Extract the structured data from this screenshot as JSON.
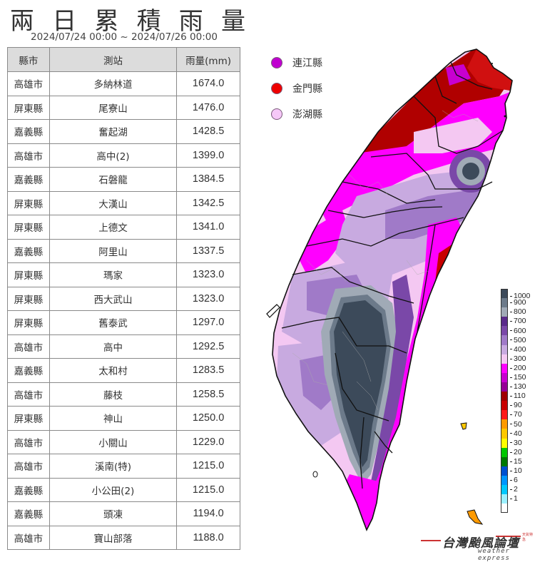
{
  "title": {
    "chars": [
      "兩",
      "日",
      "累",
      "積",
      "雨",
      "量"
    ],
    "text": "兩日累積雨量",
    "period": "2024/07/24 00:00 ~ 2024/07/26 00:00"
  },
  "table": {
    "headers": [
      "縣市",
      "測站",
      "雨量(mm)"
    ],
    "rows": [
      {
        "county": "高雄市",
        "station": "多納林道",
        "rain": "1674.0"
      },
      {
        "county": "屏東縣",
        "station": "尾寮山",
        "rain": "1476.0"
      },
      {
        "county": "嘉義縣",
        "station": "奮起湖",
        "rain": "1428.5"
      },
      {
        "county": "高雄市",
        "station": "高中(2)",
        "rain": "1399.0"
      },
      {
        "county": "嘉義縣",
        "station": "石磐龍",
        "rain": "1384.5"
      },
      {
        "county": "屏東縣",
        "station": "大漢山",
        "rain": "1342.5"
      },
      {
        "county": "屏東縣",
        "station": "上德文",
        "rain": "1341.0"
      },
      {
        "county": "嘉義縣",
        "station": "阿里山",
        "rain": "1337.5"
      },
      {
        "county": "屏東縣",
        "station": "瑪家",
        "rain": "1323.0"
      },
      {
        "county": "屏東縣",
        "station": "西大武山",
        "rain": "1323.0"
      },
      {
        "county": "屏東縣",
        "station": "舊泰武",
        "rain": "1297.0"
      },
      {
        "county": "高雄市",
        "station": "高中",
        "rain": "1292.5"
      },
      {
        "county": "嘉義縣",
        "station": "太和村",
        "rain": "1283.5"
      },
      {
        "county": "高雄市",
        "station": "藤枝",
        "rain": "1258.5"
      },
      {
        "county": "屏東縣",
        "station": "神山",
        "rain": "1250.0"
      },
      {
        "county": "高雄市",
        "station": "小關山",
        "rain": "1229.0"
      },
      {
        "county": "高雄市",
        "station": "溪南(特)",
        "rain": "1215.0"
      },
      {
        "county": "嘉義縣",
        "station": "小公田(2)",
        "rain": "1215.0"
      },
      {
        "county": "嘉義縣",
        "station": "頭凍",
        "rain": "1194.0"
      },
      {
        "county": "高雄市",
        "station": "寶山部落",
        "rain": "1188.0"
      }
    ]
  },
  "outlying_islands": [
    {
      "name": "連江縣",
      "color": "#c000d0"
    },
    {
      "name": "金門縣",
      "color": "#ee0000"
    },
    {
      "name": "澎湖縣",
      "color": "#f6c8f8"
    }
  ],
  "colorbar": {
    "unit": "mm",
    "levels": [
      {
        "label": "1000",
        "color": "#3c4a5a"
      },
      {
        "label": "900",
        "color": "#6c7a8a"
      },
      {
        "label": "800",
        "color": "#a0aab6"
      },
      {
        "label": "700",
        "color": "#5a2a8a"
      },
      {
        "label": "600",
        "color": "#7a48a8"
      },
      {
        "label": "500",
        "color": "#a07ac8"
      },
      {
        "label": "400",
        "color": "#c8aae0"
      },
      {
        "label": "300",
        "color": "#f4c8f2"
      },
      {
        "label": "200",
        "color": "#ff00ff"
      },
      {
        "label": "150",
        "color": "#c800d0"
      },
      {
        "label": "130",
        "color": "#960096"
      },
      {
        "label": "110",
        "color": "#a00000"
      },
      {
        "label": "90",
        "color": "#c80000"
      },
      {
        "label": "70",
        "color": "#ff1a1a"
      },
      {
        "label": "50",
        "color": "#ff9a00"
      },
      {
        "label": "40",
        "color": "#ffc800"
      },
      {
        "label": "30",
        "color": "#ffff00"
      },
      {
        "label": "20",
        "color": "#00c800"
      },
      {
        "label": "15",
        "color": "#007800"
      },
      {
        "label": "10",
        "color": "#0050d0"
      },
      {
        "label": "6",
        "color": "#0096ff"
      },
      {
        "label": "2",
        "color": "#00c8ff"
      },
      {
        "label": "1",
        "color": "#9cf0ff"
      },
      {
        "label": "",
        "color": "#ffffff"
      }
    ]
  },
  "logo": {
    "main": "台灣颱風論壇",
    "sub": "weather express",
    "tag": "天氣特急"
  },
  "chart_data": {
    "type": "table",
    "title": "兩日累積雨量",
    "subtitle": "2024/07/24 00:00 ~ 2024/07/26 00:00",
    "columns": [
      "縣市",
      "測站",
      "雨量(mm)"
    ],
    "categories": [
      "多納林道",
      "尾寮山",
      "奮起湖",
      "高中(2)",
      "石磐龍",
      "大漢山",
      "上德文",
      "阿里山",
      "瑪家",
      "西大武山",
      "舊泰武",
      "高中",
      "太和村",
      "藤枝",
      "神山",
      "小關山",
      "溪南(特)",
      "小公田(2)",
      "頭凍",
      "寶山部落"
    ],
    "values": [
      1674.0,
      1476.0,
      1428.5,
      1399.0,
      1384.5,
      1342.5,
      1341.0,
      1337.5,
      1323.0,
      1323.0,
      1297.0,
      1292.5,
      1283.5,
      1258.5,
      1250.0,
      1229.0,
      1215.0,
      1215.0,
      1194.0,
      1188.0
    ],
    "ylabel": "雨量(mm)",
    "colorbar_ticks": [
      1,
      2,
      6,
      10,
      15,
      20,
      30,
      40,
      50,
      70,
      90,
      110,
      130,
      150,
      200,
      300,
      400,
      500,
      600,
      700,
      800,
      900,
      1000
    ]
  }
}
